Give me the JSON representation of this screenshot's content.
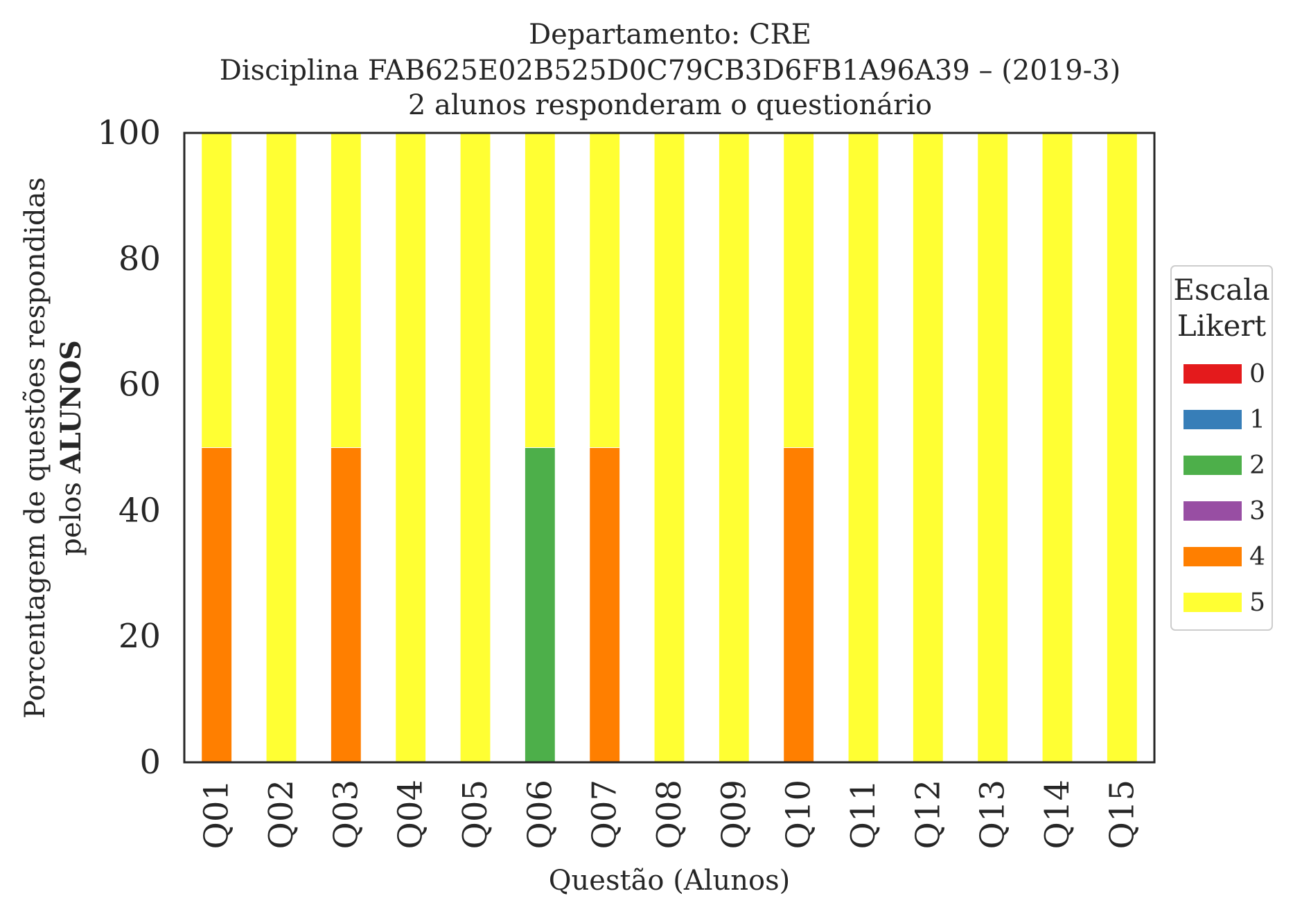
{
  "chart_data": {
    "type": "bar",
    "stacked": true,
    "title_lines": [
      "Departamento: CRE",
      "Disciplina FAB625E02B525D0C79CB3D6FB1A96A39 – (2019-3)",
      "2 alunos responderam o questionário"
    ],
    "xlabel": "Questão (Alunos)",
    "ylabel_line1": "Porcentagem de questões respondidas",
    "ylabel_line2_prefix": "pelos ",
    "ylabel_line2_bold": "ALUNOS",
    "ylim": [
      0,
      100
    ],
    "yticks": [
      "0",
      "20",
      "40",
      "60",
      "80",
      "100"
    ],
    "grid": false,
    "categories": [
      "Q01",
      "Q02",
      "Q03",
      "Q04",
      "Q05",
      "Q06",
      "Q07",
      "Q08",
      "Q09",
      "Q10",
      "Q11",
      "Q12",
      "Q13",
      "Q14",
      "Q15"
    ],
    "legend": {
      "title_lines": [
        "Escala",
        "Likert"
      ],
      "placement": "right-center"
    },
    "series": [
      {
        "name": "0",
        "color": "#e41a1c",
        "values": [
          0,
          0,
          0,
          0,
          0,
          0,
          0,
          0,
          0,
          0,
          0,
          0,
          0,
          0,
          0
        ]
      },
      {
        "name": "1",
        "color": "#377eb8",
        "values": [
          0,
          0,
          0,
          0,
          0,
          0,
          0,
          0,
          0,
          0,
          0,
          0,
          0,
          0,
          0
        ]
      },
      {
        "name": "2",
        "color": "#4daf4a",
        "values": [
          0,
          0,
          0,
          0,
          0,
          50,
          0,
          0,
          0,
          0,
          0,
          0,
          0,
          0,
          0
        ]
      },
      {
        "name": "3",
        "color": "#984ea3",
        "values": [
          0,
          0,
          0,
          0,
          0,
          0,
          0,
          0,
          0,
          0,
          0,
          0,
          0,
          0,
          0
        ]
      },
      {
        "name": "4",
        "color": "#ff7f00",
        "values": [
          50,
          0,
          50,
          0,
          0,
          0,
          50,
          0,
          0,
          50,
          0,
          0,
          0,
          0,
          0
        ]
      },
      {
        "name": "5",
        "color": "#ffff33",
        "values": [
          50,
          100,
          50,
          100,
          100,
          50,
          50,
          100,
          100,
          50,
          100,
          100,
          100,
          100,
          100
        ]
      }
    ]
  }
}
